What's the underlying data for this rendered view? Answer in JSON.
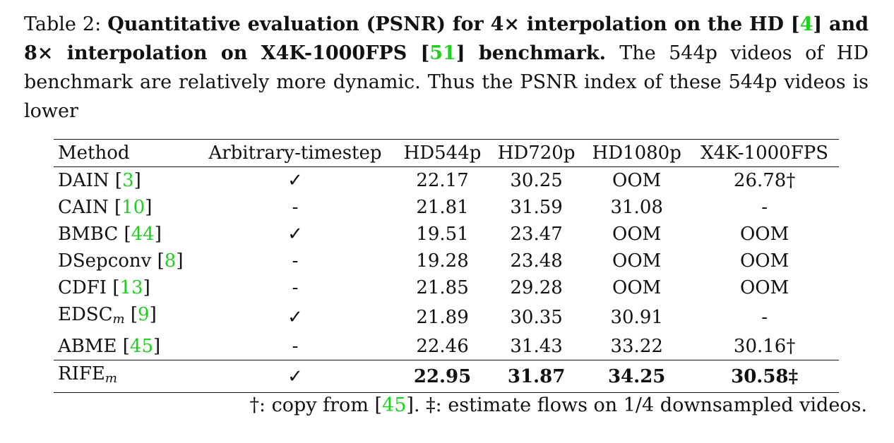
{
  "caption": {
    "label": "Table 2:",
    "bold_part1": "Quantitative evaluation (PSNR) for ",
    "bold_math1": "4×",
    "bold_part2": " interpolation on the HD [",
    "cite_hd": "4",
    "bold_part3": "] and ",
    "bold_math2": "8×",
    "bold_part4": " interpolation on X4K-1000FPS [",
    "cite_x4k": "51",
    "bold_part5": "] benchmark.",
    "rest": " The 544p videos of HD benchmark are relatively more dynamic. Thus the PSNR index of these 544p videos is lower"
  },
  "table": {
    "headers": [
      "Method",
      "Arbitrary-timestep",
      "HD544p",
      "HD720p",
      "HD1080p",
      "X4K-1000FPS"
    ],
    "rows": [
      {
        "method": "DAIN",
        "sub": "",
        "cite": "3",
        "arbitrary": "✓",
        "hd544": "22.17",
        "hd720": "30.25",
        "hd1080": "OOM",
        "x4k": "26.78†"
      },
      {
        "method": "CAIN",
        "sub": "",
        "cite": "10",
        "arbitrary": "-",
        "hd544": "21.81",
        "hd720": "31.59",
        "hd1080": "31.08",
        "x4k": "-"
      },
      {
        "method": "BMBC",
        "sub": "",
        "cite": "44",
        "arbitrary": "✓",
        "hd544": "19.51",
        "hd720": "23.47",
        "hd1080": "OOM",
        "x4k": "OOM"
      },
      {
        "method": "DSepconv",
        "sub": "",
        "cite": "8",
        "arbitrary": "-",
        "hd544": "19.28",
        "hd720": "23.48",
        "hd1080": "OOM",
        "x4k": "OOM"
      },
      {
        "method": "CDFI",
        "sub": "",
        "cite": "13",
        "arbitrary": "-",
        "hd544": "21.85",
        "hd720": "29.28",
        "hd1080": "OOM",
        "x4k": "OOM"
      },
      {
        "method": "EDSC",
        "sub": "m",
        "cite": "9",
        "arbitrary": "✓",
        "hd544": "21.89",
        "hd720": "30.35",
        "hd1080": "30.91",
        "x4k": "-"
      },
      {
        "method": "ABME",
        "sub": "",
        "cite": "45",
        "arbitrary": "-",
        "hd544": "22.46",
        "hd720": "31.43",
        "hd1080": "33.22",
        "x4k": "30.16†"
      }
    ],
    "final_row": {
      "method": "RIFE",
      "sub": "m",
      "arbitrary": "✓",
      "hd544": "22.95",
      "hd720": "31.87",
      "hd1080": "34.25",
      "x4k": "30.58‡"
    }
  },
  "footnote": {
    "part1": "†: copy from [",
    "cite": "45",
    "part2": "]. ‡: estimate flows on 1/4 downsampled videos."
  },
  "colors": {
    "citation": "#1fd11f",
    "text": "#111111"
  }
}
